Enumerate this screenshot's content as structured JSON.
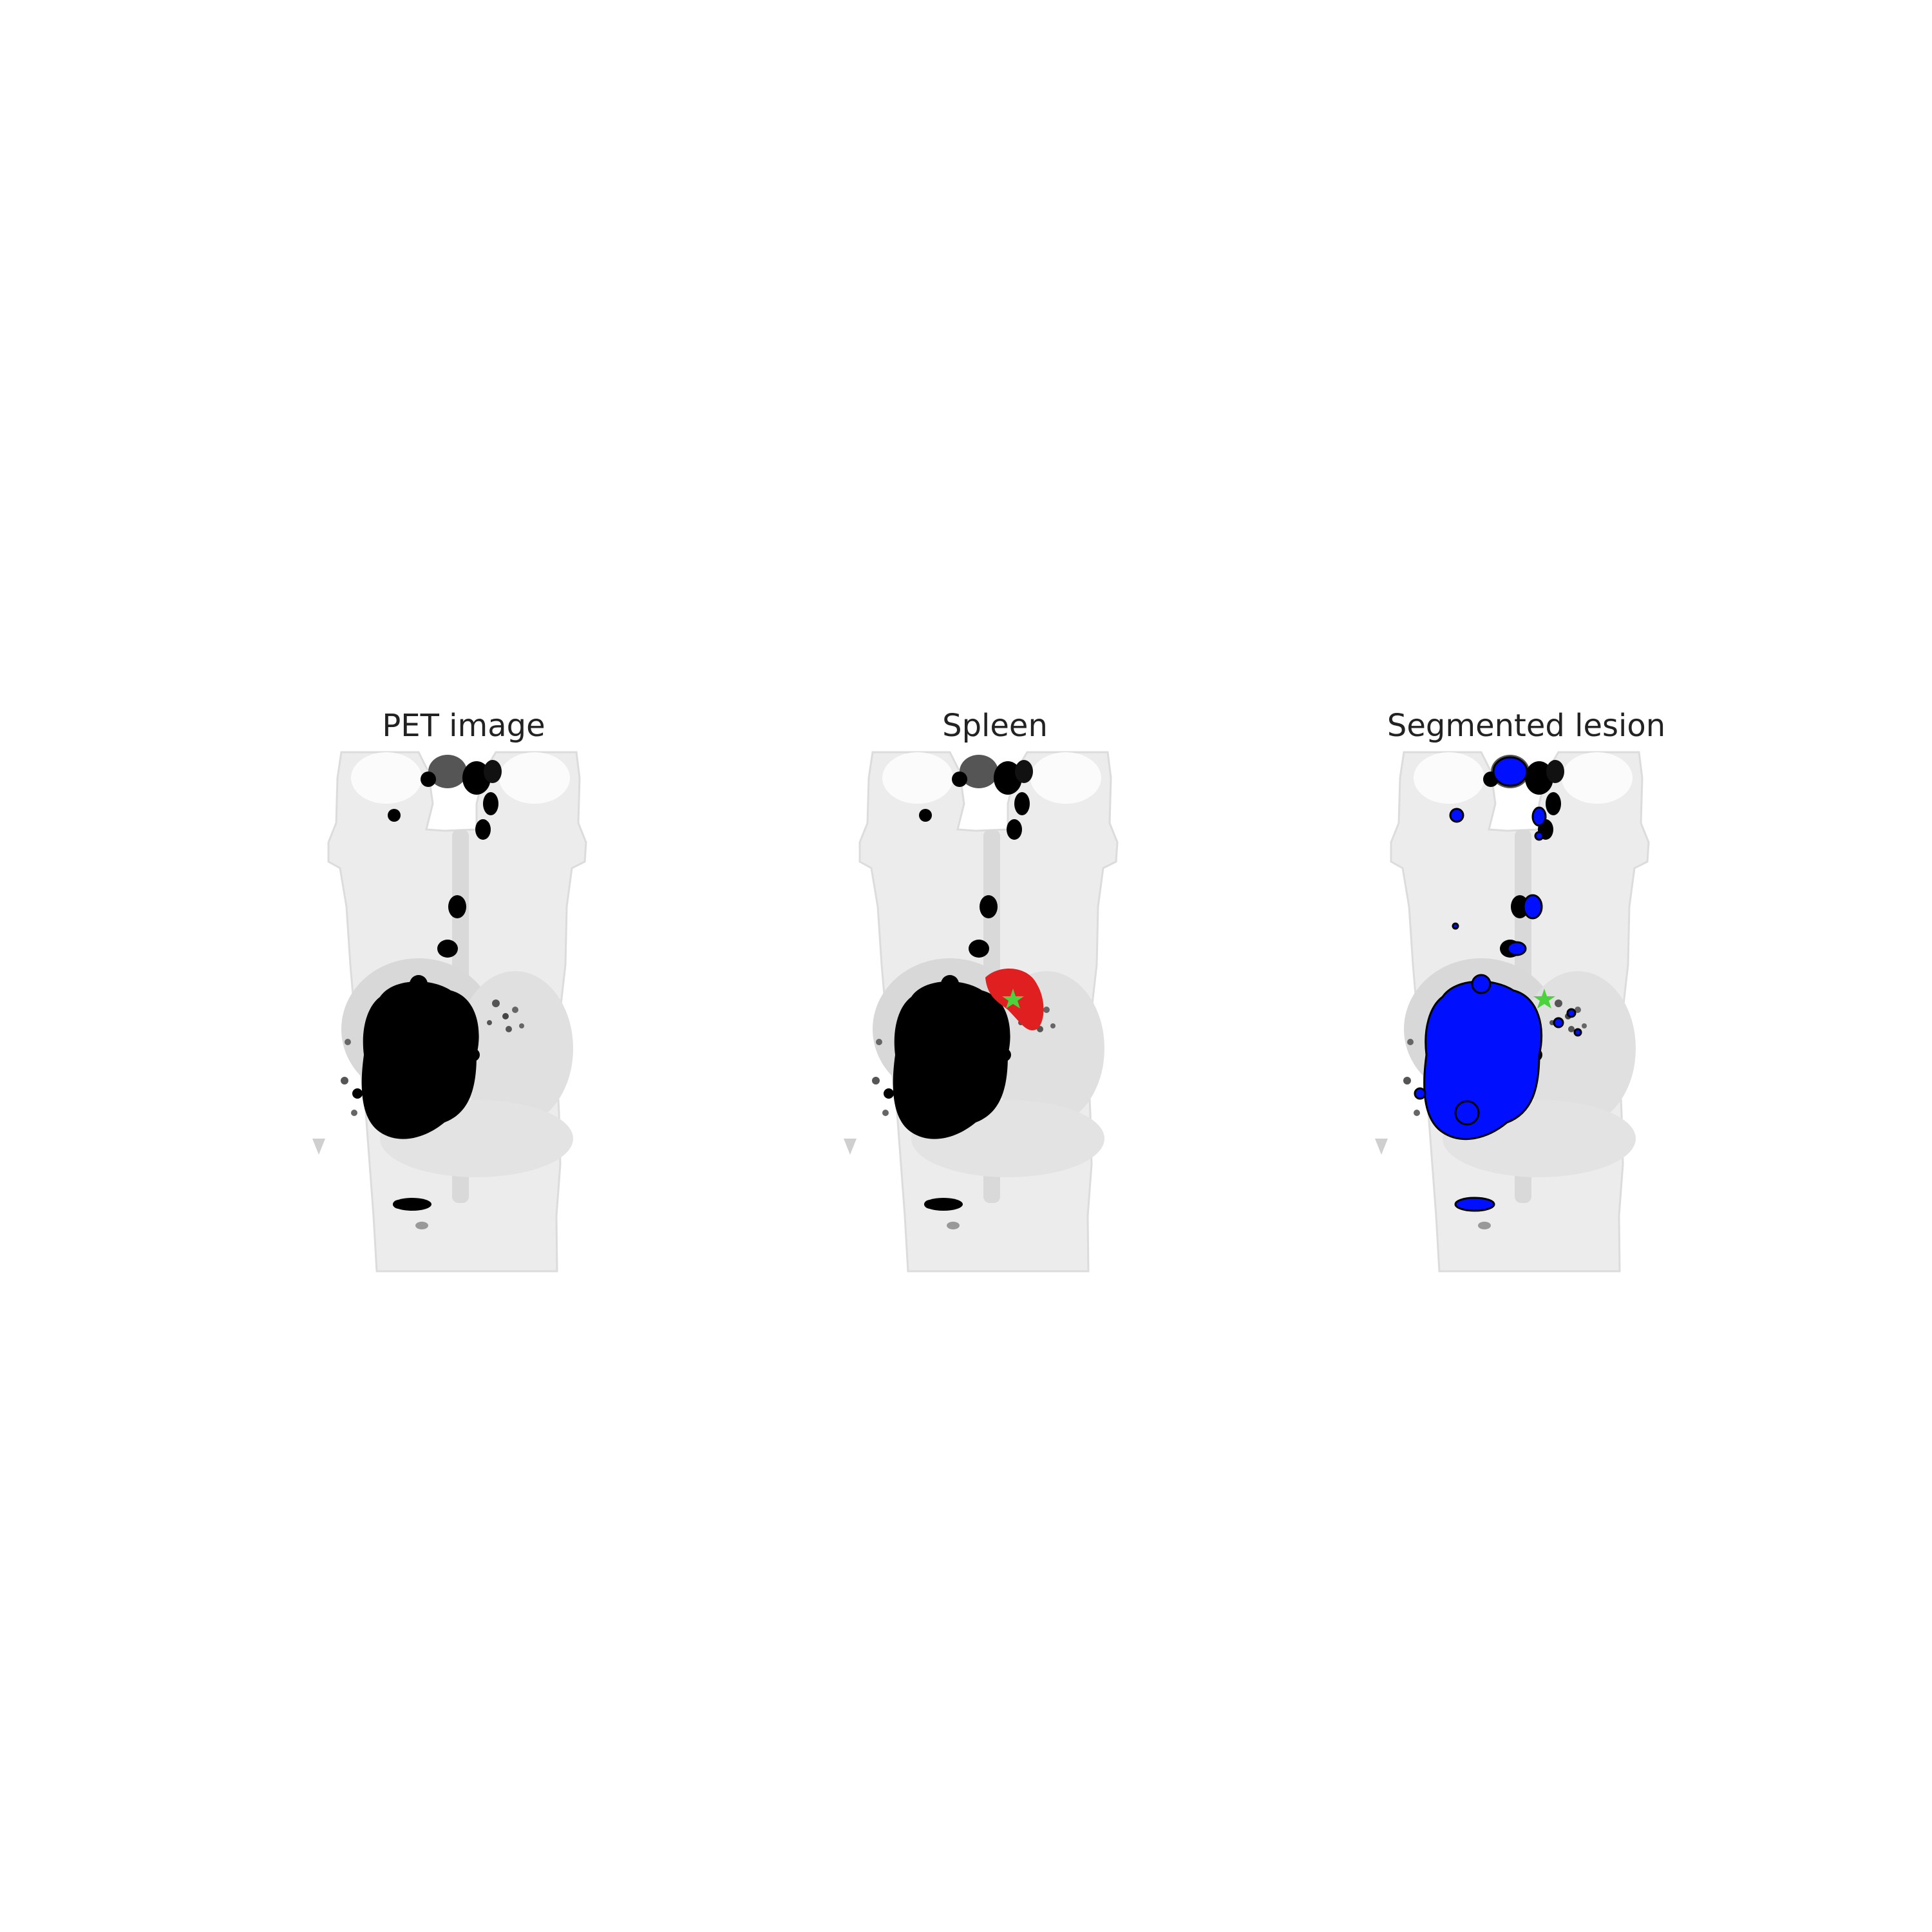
{
  "panels": [
    {
      "id": "pet",
      "title": "PET image",
      "overlay": "none"
    },
    {
      "id": "spleen",
      "title": "Spleen",
      "overlay": "spleen-mask"
    },
    {
      "id": "lesion",
      "title": "Segmented lesion",
      "overlay": "lesion-mask"
    }
  ],
  "colors": {
    "background": "#ffffff",
    "body_tint": "#e8e8e8",
    "body_edge": "#d6d6d6",
    "uptake": "#000000",
    "spleen_mask": "#e02020",
    "lesion_mask": "#0010ff",
    "marker": "#4cd23c",
    "title_text": "#222222"
  }
}
